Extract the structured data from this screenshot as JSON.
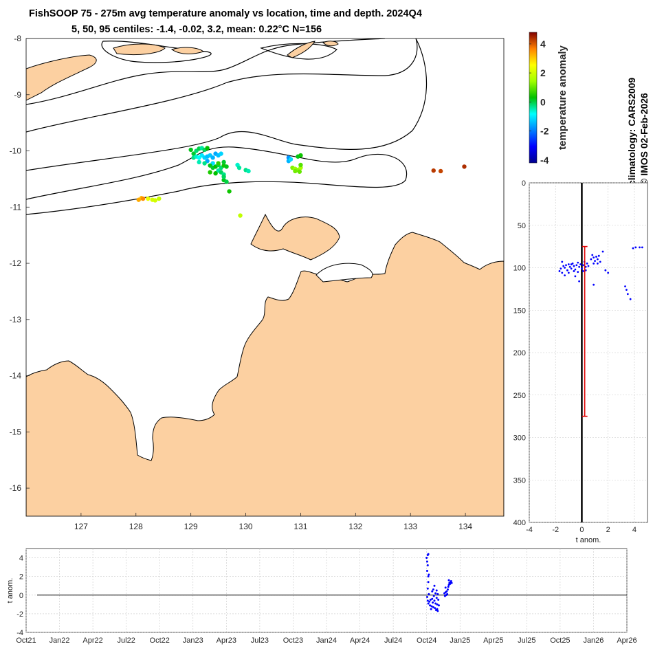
{
  "header": {
    "title_line1": "FishSOOP 75 - 275m avg temperature anomaly vs location, time and depth. 2024Q4",
    "title_line2": "5, 50, 95 centiles: -1.4, -0.02, 3.2, mean: 0.22°C N=156"
  },
  "side": {
    "climatology": "climatology: CARS2009",
    "credit": "© IMOS 02-Feb-2026"
  },
  "colors": {
    "land": "#fcd0a1",
    "coast": "#000000",
    "profile_points": "#0000ff",
    "range_bar": "#e00000"
  },
  "chart_data": [
    {
      "type": "scatter",
      "name": "map",
      "xlabel": "",
      "ylabel": "",
      "xlim": [
        126.0,
        134.7
      ],
      "ylim": [
        -16.5,
        -8.0
      ],
      "xticks": [
        127,
        128,
        129,
        130,
        131,
        132,
        133,
        134
      ],
      "yticks": [
        -8,
        -9,
        -10,
        -11,
        -12,
        -13,
        -14,
        -15,
        -16
      ],
      "color_variable": "temperature anomaly",
      "points": [
        {
          "lon": 129.0,
          "lat": -9.98,
          "v": 0.2
        },
        {
          "lon": 129.05,
          "lat": -10.05,
          "v": 0.1
        },
        {
          "lon": 129.1,
          "lat": -10.0,
          "v": -0.2
        },
        {
          "lon": 129.15,
          "lat": -9.96,
          "v": 0.0
        },
        {
          "lon": 129.2,
          "lat": -9.95,
          "v": -0.4
        },
        {
          "lon": 129.25,
          "lat": -9.98,
          "v": -0.1
        },
        {
          "lon": 129.3,
          "lat": -9.95,
          "v": 0.3
        },
        {
          "lon": 129.05,
          "lat": -10.12,
          "v": -0.3
        },
        {
          "lon": 129.1,
          "lat": -10.1,
          "v": -0.6
        },
        {
          "lon": 129.15,
          "lat": -10.12,
          "v": -0.8
        },
        {
          "lon": 129.2,
          "lat": -10.08,
          "v": -1.0
        },
        {
          "lon": 129.25,
          "lat": -10.12,
          "v": -1.2
        },
        {
          "lon": 129.3,
          "lat": -10.1,
          "v": -1.4
        },
        {
          "lon": 129.35,
          "lat": -10.08,
          "v": -1.3
        },
        {
          "lon": 129.4,
          "lat": -10.12,
          "v": -1.5
        },
        {
          "lon": 129.45,
          "lat": -10.05,
          "v": -1.6
        },
        {
          "lon": 129.5,
          "lat": -10.08,
          "v": -1.4
        },
        {
          "lon": 129.55,
          "lat": -10.05,
          "v": -1.2
        },
        {
          "lon": 129.3,
          "lat": -10.18,
          "v": -1.6
        },
        {
          "lon": 129.4,
          "lat": -10.22,
          "v": -1.1
        },
        {
          "lon": 129.15,
          "lat": -10.2,
          "v": -0.5
        },
        {
          "lon": 129.25,
          "lat": -10.22,
          "v": -0.3
        },
        {
          "lon": 129.35,
          "lat": -10.26,
          "v": 0.2
        },
        {
          "lon": 129.4,
          "lat": -10.3,
          "v": 0.1
        },
        {
          "lon": 129.45,
          "lat": -10.28,
          "v": 0.3
        },
        {
          "lon": 129.5,
          "lat": -10.25,
          "v": 0.0
        },
        {
          "lon": 129.55,
          "lat": -10.3,
          "v": -0.2
        },
        {
          "lon": 129.6,
          "lat": -10.26,
          "v": 0.4
        },
        {
          "lon": 129.65,
          "lat": -10.28,
          "v": 0.2
        },
        {
          "lon": 129.5,
          "lat": -10.35,
          "v": -0.4
        },
        {
          "lon": 129.55,
          "lat": -10.38,
          "v": -0.1
        },
        {
          "lon": 129.45,
          "lat": -10.4,
          "v": 0.3
        },
        {
          "lon": 129.35,
          "lat": -10.38,
          "v": 0.5
        },
        {
          "lon": 129.6,
          "lat": -10.42,
          "v": -0.3
        },
        {
          "lon": 129.6,
          "lat": -10.52,
          "v": 0.2
        },
        {
          "lon": 129.65,
          "lat": -10.55,
          "v": 0.0
        },
        {
          "lon": 129.6,
          "lat": -10.46,
          "v": -0.1
        },
        {
          "lon": 129.7,
          "lat": -10.72,
          "v": 0.4
        },
        {
          "lon": 129.5,
          "lat": -10.22,
          "v": 0.6
        },
        {
          "lon": 129.6,
          "lat": -10.2,
          "v": 0.1
        },
        {
          "lon": 129.85,
          "lat": -10.25,
          "v": -0.6
        },
        {
          "lon": 129.88,
          "lat": -10.3,
          "v": -0.4
        },
        {
          "lon": 130.0,
          "lat": -10.34,
          "v": -0.3
        },
        {
          "lon": 130.05,
          "lat": -10.36,
          "v": -0.5
        },
        {
          "lon": 129.9,
          "lat": -11.15,
          "v": 1.8
        },
        {
          "lon": 130.78,
          "lat": -10.12,
          "v": -1.8
        },
        {
          "lon": 130.78,
          "lat": -10.18,
          "v": -1.5
        },
        {
          "lon": 130.82,
          "lat": -10.15,
          "v": -1.1
        },
        {
          "lon": 130.95,
          "lat": -10.1,
          "v": 0.2
        },
        {
          "lon": 131.0,
          "lat": -10.08,
          "v": 0.4
        },
        {
          "lon": 130.85,
          "lat": -10.3,
          "v": 1.2
        },
        {
          "lon": 130.9,
          "lat": -10.32,
          "v": 1.4
        },
        {
          "lon": 130.95,
          "lat": -10.34,
          "v": 1.3
        },
        {
          "lon": 131.0,
          "lat": -10.3,
          "v": 1.5
        },
        {
          "lon": 130.9,
          "lat": -10.36,
          "v": 1.1
        },
        {
          "lon": 130.98,
          "lat": -10.37,
          "v": 1.0
        },
        {
          "lon": 131.0,
          "lat": -10.25,
          "v": 0.9
        },
        {
          "lon": 128.1,
          "lat": -10.84,
          "v": 3.2
        },
        {
          "lon": 128.13,
          "lat": -10.85,
          "v": 3.6
        },
        {
          "lon": 128.05,
          "lat": -10.87,
          "v": 3.3
        },
        {
          "lon": 128.22,
          "lat": -10.85,
          "v": 2.3
        },
        {
          "lon": 128.3,
          "lat": -10.87,
          "v": 2.1
        },
        {
          "lon": 128.35,
          "lat": -10.88,
          "v": 2.0
        },
        {
          "lon": 128.42,
          "lat": -10.85,
          "v": 1.9
        },
        {
          "lon": 133.42,
          "lat": -10.35,
          "v": 4.3
        },
        {
          "lon": 133.55,
          "lat": -10.36,
          "v": 4.2
        },
        {
          "lon": 133.98,
          "lat": -10.28,
          "v": 4.4
        }
      ]
    },
    {
      "type": "colorbar",
      "label": "temperature anomaly",
      "range": [
        -4.2,
        4.8
      ],
      "ticks": [
        4,
        2,
        0,
        -2,
        -4
      ]
    },
    {
      "type": "scatter",
      "name": "depth_profile",
      "xlabel": "t anom.",
      "ylabel": "",
      "xlim": [
        -4,
        5
      ],
      "ylim": [
        400,
        0
      ],
      "xticks": [
        -4,
        -2,
        0,
        2,
        4
      ],
      "yticks": [
        0,
        50,
        100,
        150,
        200,
        250,
        300,
        350,
        400
      ],
      "range_bar": {
        "x": 0.22,
        "depth_top": 75,
        "depth_bottom": 275
      },
      "zero_line": 0,
      "points": [
        [
          -1.6,
          101
        ],
        [
          -1.7,
          104
        ],
        [
          -1.5,
          106
        ],
        [
          -1.4,
          98
        ],
        [
          -1.3,
          100
        ],
        [
          -1.2,
          97
        ],
        [
          -1.1,
          103
        ],
        [
          -1.0,
          96
        ],
        [
          -0.9,
          99
        ],
        [
          -0.8,
          101
        ],
        [
          -0.7,
          95
        ],
        [
          -0.6,
          98
        ],
        [
          -0.5,
          102
        ],
        [
          -0.4,
          97
        ],
        [
          -0.3,
          94
        ],
        [
          -0.2,
          99
        ],
        [
          -0.1,
          96
        ],
        [
          0.0,
          101
        ],
        [
          0.1,
          97
        ],
        [
          0.2,
          93
        ],
        [
          0.3,
          99
        ],
        [
          0.4,
          95
        ],
        [
          0.5,
          98
        ],
        [
          -0.6,
          104
        ],
        [
          -0.8,
          96
        ],
        [
          -1.0,
          106
        ],
        [
          -0.3,
          105
        ],
        [
          0.1,
          104
        ],
        [
          0.3,
          103
        ],
        [
          -1.3,
          109
        ],
        [
          -1.5,
          93
        ],
        [
          -0.5,
          110
        ],
        [
          0.7,
          90
        ],
        [
          0.8,
          85
        ],
        [
          0.9,
          88
        ],
        [
          1.0,
          92
        ],
        [
          1.1,
          87
        ],
        [
          1.2,
          90
        ],
        [
          1.3,
          86
        ],
        [
          1.4,
          93
        ],
        [
          0.9,
          95
        ],
        [
          1.2,
          95
        ],
        [
          1.6,
          81
        ],
        [
          1.8,
          103
        ],
        [
          2.0,
          106
        ],
        [
          0.9,
          120
        ],
        [
          -0.2,
          116
        ],
        [
          3.3,
          122
        ],
        [
          3.4,
          126
        ],
        [
          3.5,
          131
        ],
        [
          3.7,
          137
        ],
        [
          3.9,
          77
        ],
        [
          4.1,
          76
        ],
        [
          4.4,
          76
        ],
        [
          4.6,
          76
        ]
      ]
    },
    {
      "type": "scatter",
      "name": "time_series",
      "xlabel": "",
      "ylabel": "t anom.",
      "ylim": [
        -4,
        5
      ],
      "yticks": [
        4,
        2,
        0,
        -2,
        -4
      ],
      "xticks": [
        "Oct21",
        "Jan22",
        "Apr22",
        "Jul22",
        "Oct22",
        "Jan23",
        "Apr23",
        "Jul23",
        "Oct23",
        "Jan24",
        "Apr24",
        "Jul24",
        "Oct24",
        "Jan25",
        "Apr25",
        "Jul25",
        "Oct25",
        "Jan26",
        "Apr26"
      ],
      "x_unit": "months since Oct21",
      "points": [
        [
          36.0,
          4.0
        ],
        [
          36.05,
          3.6
        ],
        [
          36.1,
          4.3
        ],
        [
          36.15,
          4.4
        ],
        [
          36.1,
          3.2
        ],
        [
          36.05,
          2.6
        ],
        [
          36.15,
          2.0
        ],
        [
          36.2,
          2.2
        ],
        [
          36.15,
          1.4
        ],
        [
          36.1,
          0.7
        ],
        [
          36.2,
          0.1
        ],
        [
          36.05,
          -0.2
        ],
        [
          36.1,
          -0.6
        ],
        [
          36.15,
          -0.9
        ],
        [
          36.25,
          -0.7
        ],
        [
          36.3,
          -1.1
        ],
        [
          36.35,
          -0.5
        ],
        [
          36.4,
          -1.5
        ],
        [
          36.45,
          -1.2
        ],
        [
          36.5,
          -0.4
        ],
        [
          36.55,
          -0.8
        ],
        [
          36.6,
          -1.3
        ],
        [
          36.65,
          -0.1
        ],
        [
          36.7,
          -0.6
        ],
        [
          36.75,
          -1.4
        ],
        [
          36.8,
          -0.9
        ],
        [
          36.85,
          -1.6
        ],
        [
          36.9,
          -0.3
        ],
        [
          36.95,
          -1.0
        ],
        [
          37.0,
          0.1
        ],
        [
          37.05,
          -0.5
        ],
        [
          37.1,
          -1.1
        ],
        [
          36.5,
          0.4
        ],
        [
          36.6,
          0.6
        ],
        [
          36.7,
          1.0
        ],
        [
          36.8,
          0.2
        ],
        [
          36.9,
          0.5
        ],
        [
          36.95,
          -1.5
        ],
        [
          37.0,
          -1.7
        ],
        [
          37.6,
          0.2
        ],
        [
          37.65,
          -0.1
        ],
        [
          37.7,
          0.3
        ],
        [
          37.75,
          0.0
        ],
        [
          37.8,
          0.4
        ],
        [
          37.85,
          0.1
        ],
        [
          37.9,
          0.6
        ],
        [
          37.95,
          0.9
        ],
        [
          38.0,
          1.1
        ],
        [
          38.05,
          1.3
        ],
        [
          38.1,
          1.2
        ],
        [
          38.15,
          1.4
        ],
        [
          38.2,
          1.5
        ],
        [
          38.25,
          1.3
        ],
        [
          38.0,
          1.6
        ],
        [
          37.7,
          0.8
        ]
      ]
    }
  ]
}
